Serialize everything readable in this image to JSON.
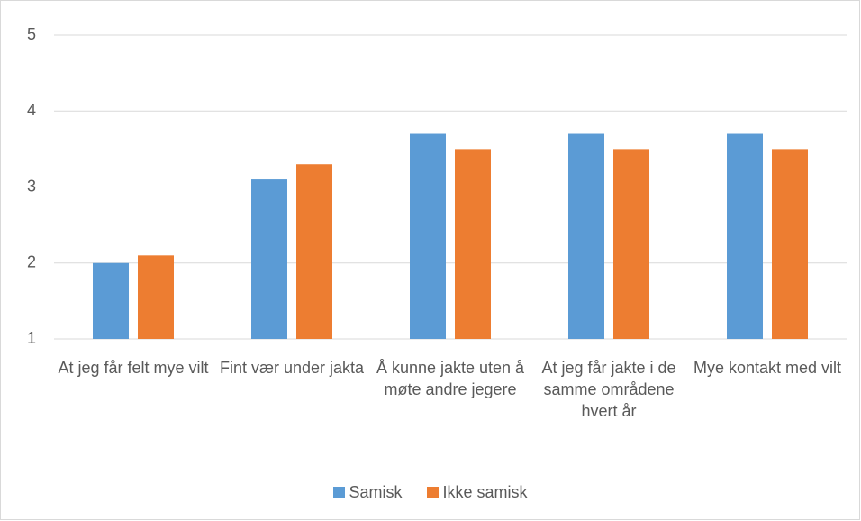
{
  "chart_data": {
    "type": "bar",
    "categories": [
      "At jeg får felt mye vilt",
      "Fint vær under jakta",
      "Å kunne jakte uten å møte andre jegere",
      "At jeg får jakte i de samme områdene hvert år",
      "Mye kontakt med vilt"
    ],
    "series": [
      {
        "name": "Samisk",
        "color": "#5b9bd5",
        "values": [
          2.0,
          3.1,
          3.7,
          3.7,
          3.7
        ]
      },
      {
        "name": "Ikke samisk",
        "color": "#ed7d31",
        "values": [
          2.1,
          3.3,
          3.5,
          3.5,
          3.5
        ]
      }
    ],
    "ylim": [
      1,
      5
    ],
    "yticks": [
      1,
      2,
      3,
      4,
      5
    ],
    "grid": true,
    "legend": "bottom"
  }
}
